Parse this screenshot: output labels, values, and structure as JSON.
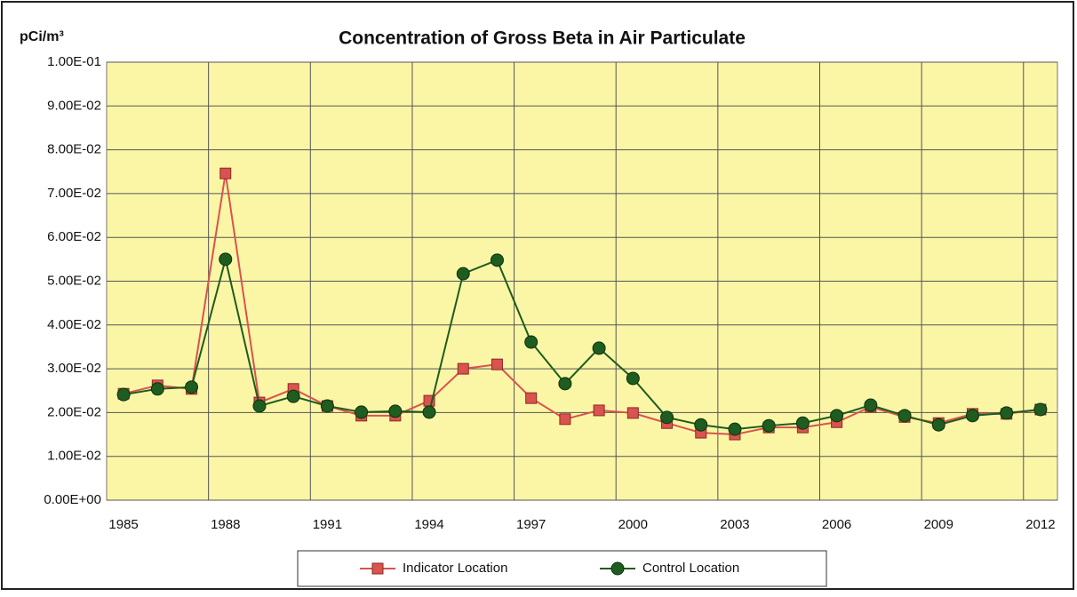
{
  "chart_data": {
    "type": "line",
    "title": "Concentration of Gross Beta in Air Particulate",
    "y_label": "pCi/m³",
    "categories": [
      "1985",
      null,
      null,
      "1988",
      null,
      null,
      "1991",
      null,
      null,
      "1994",
      null,
      null,
      "1997",
      null,
      null,
      "2000",
      null,
      null,
      "2003",
      null,
      null,
      "2006",
      null,
      null,
      "2009",
      null,
      null,
      "2012"
    ],
    "series": [
      {
        "name": "Indicator Location",
        "color": "#d9534f",
        "marker": "square",
        "values": [
          0.0243,
          0.0262,
          0.0254,
          0.0746,
          0.0223,
          0.0254,
          0.0215,
          0.0193,
          0.0193,
          0.0227,
          0.03,
          0.031,
          0.0233,
          0.0185,
          0.0205,
          0.0199,
          0.0176,
          0.0154,
          0.015,
          0.0166,
          0.0166,
          0.0178,
          0.0213,
          0.019,
          0.0176,
          0.0197,
          0.0197,
          0.0207
        ]
      },
      {
        "name": "Control Location",
        "color": "#1f5c1f",
        "marker": "circle",
        "values": [
          0.0241,
          0.0254,
          0.0258,
          0.055,
          0.0215,
          0.0237,
          0.0215,
          0.0201,
          0.0203,
          0.0201,
          0.0517,
          0.0548,
          0.0361,
          0.0266,
          0.0347,
          0.0278,
          0.0189,
          0.0172,
          0.0162,
          0.017,
          0.0176,
          0.0193,
          0.0217,
          0.0193,
          0.0172,
          0.0193,
          0.0199,
          0.0207
        ]
      }
    ],
    "ylim": [
      0,
      0.1
    ],
    "yticks": [
      {
        "value": 0,
        "label": "0.00E+00"
      },
      {
        "value": 0.01,
        "label": "1.00E-02"
      },
      {
        "value": 0.02,
        "label": "2.00E-02"
      },
      {
        "value": 0.03,
        "label": "3.00E-02"
      },
      {
        "value": 0.04,
        "label": "4.00E-02"
      },
      {
        "value": 0.05,
        "label": "5.00E-02"
      },
      {
        "value": 0.06,
        "label": "6.00E-02"
      },
      {
        "value": 0.07,
        "label": "7.00E-02"
      },
      {
        "value": 0.08,
        "label": "8.00E-02"
      },
      {
        "value": 0.09,
        "label": "9.00E-02"
      },
      {
        "value": 0.1,
        "label": "1.00E-01"
      }
    ],
    "grid": true,
    "legend": "bottom"
  }
}
